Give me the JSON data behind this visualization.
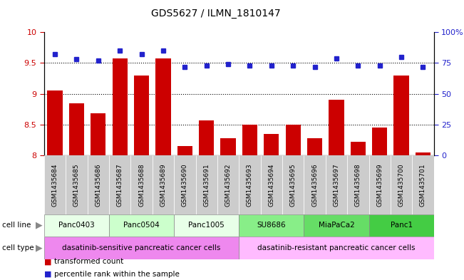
{
  "title": "GDS5627 / ILMN_1810147",
  "samples": [
    "GSM1435684",
    "GSM1435685",
    "GSM1435686",
    "GSM1435687",
    "GSM1435688",
    "GSM1435689",
    "GSM1435690",
    "GSM1435691",
    "GSM1435692",
    "GSM1435693",
    "GSM1435694",
    "GSM1435695",
    "GSM1435696",
    "GSM1435697",
    "GSM1435698",
    "GSM1435699",
    "GSM1435700",
    "GSM1435701"
  ],
  "transformed_count": [
    9.05,
    8.85,
    8.68,
    9.57,
    9.3,
    9.57,
    8.15,
    8.57,
    8.28,
    8.5,
    8.35,
    8.5,
    8.28,
    8.9,
    8.22,
    8.45,
    9.3,
    8.05
  ],
  "percentile_rank": [
    82,
    78,
    77,
    85,
    82,
    85,
    72,
    73,
    74,
    73,
    73,
    73,
    72,
    79,
    73,
    73,
    80,
    72
  ],
  "cell_lines": [
    {
      "name": "Panc0403",
      "start": 0,
      "end": 3,
      "color": "#e8ffe8"
    },
    {
      "name": "Panc0504",
      "start": 3,
      "end": 6,
      "color": "#ccffcc"
    },
    {
      "name": "Panc1005",
      "start": 6,
      "end": 9,
      "color": "#e8ffe8"
    },
    {
      "name": "SU8686",
      "start": 9,
      "end": 12,
      "color": "#88ee88"
    },
    {
      "name": "MiaPaCa2",
      "start": 12,
      "end": 15,
      "color": "#66dd66"
    },
    {
      "name": "Panc1",
      "start": 15,
      "end": 18,
      "color": "#44cc44"
    }
  ],
  "cell_types": [
    {
      "name": "dasatinib-sensitive pancreatic cancer cells",
      "start": 0,
      "end": 9,
      "color": "#ee88ee"
    },
    {
      "name": "dasatinib-resistant pancreatic cancer cells",
      "start": 9,
      "end": 18,
      "color": "#ffbbff"
    }
  ],
  "ylim_left": [
    8.0,
    10.0
  ],
  "ylim_right": [
    0,
    100
  ],
  "bar_color": "#cc0000",
  "dot_color": "#2222cc",
  "yticks_left": [
    8.0,
    8.5,
    9.0,
    9.5,
    10.0
  ],
  "yticks_right": [
    0,
    25,
    50,
    75,
    100
  ],
  "ylabel_left_color": "#cc0000",
  "ylabel_right_color": "#2222cc",
  "tick_label_bg": "#cccccc",
  "tick_label_fontsize": 7,
  "bar_width": 0.7
}
